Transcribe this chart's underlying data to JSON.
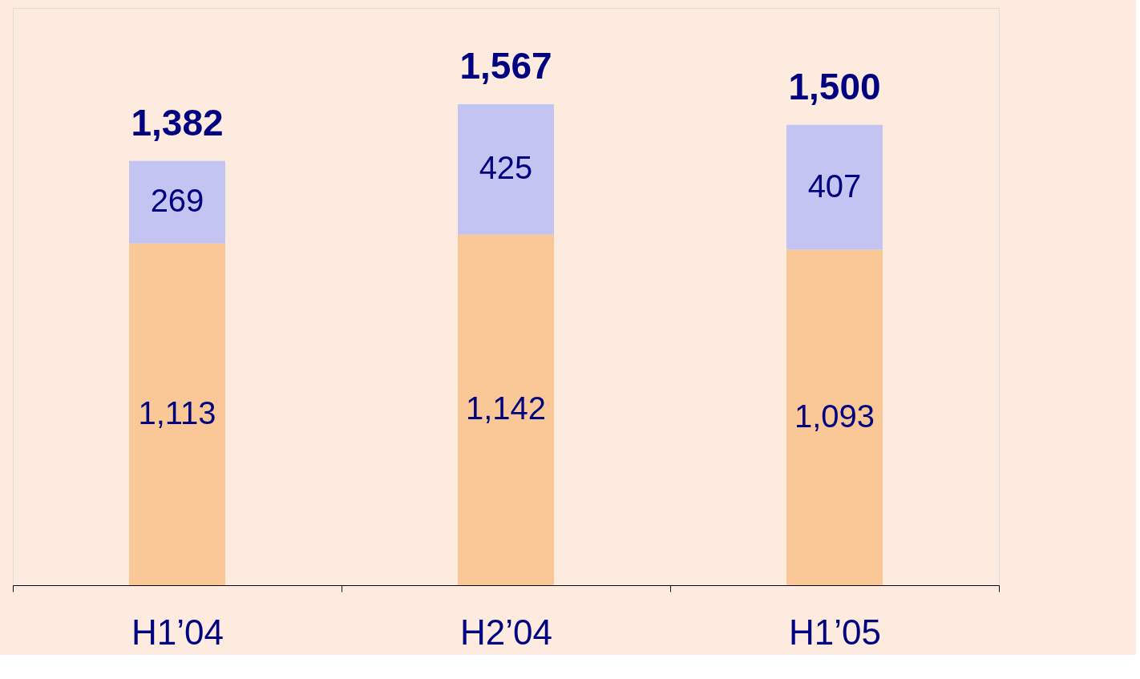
{
  "chart_data": {
    "type": "bar",
    "stacked": true,
    "legend": false,
    "grid": false,
    "categories": [
      "H1’04",
      "H2’04",
      "H1’05"
    ],
    "series": [
      {
        "color": "#f9c896",
        "values": [
          1113,
          1142,
          1093
        ],
        "value_labels": [
          "1,113",
          "1,142",
          "1,093"
        ]
      },
      {
        "color": "#c4c4f2",
        "values": [
          269,
          425,
          407
        ],
        "value_labels": [
          "269",
          "425",
          "407"
        ]
      }
    ],
    "totals": [
      "1,382",
      "1,567",
      "1,500"
    ]
  }
}
